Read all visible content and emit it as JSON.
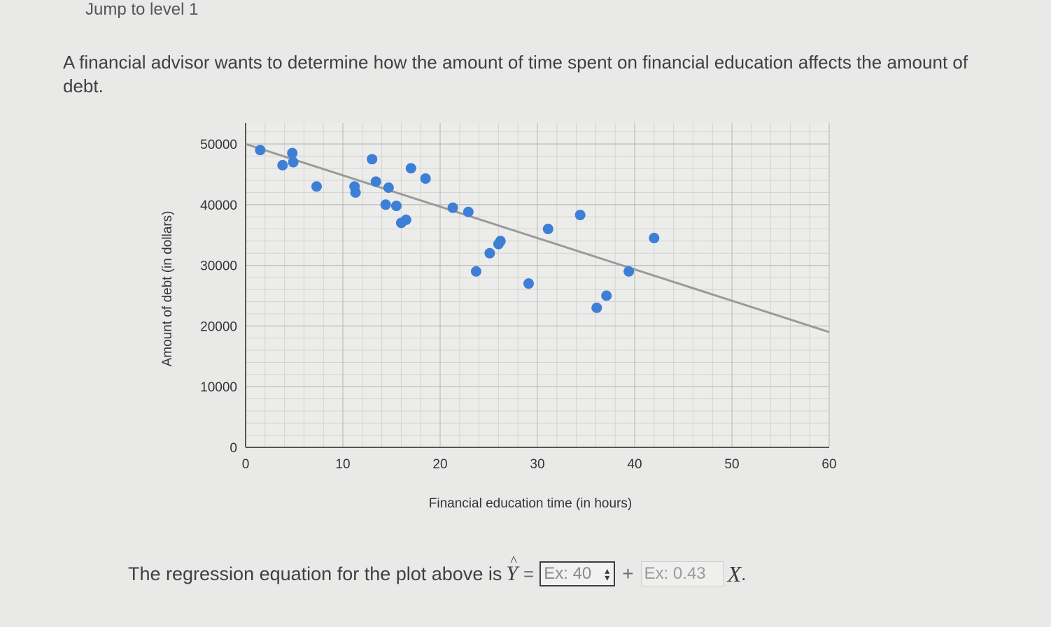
{
  "header": {
    "level_link": "Jump to level 1"
  },
  "problem": {
    "text": "A financial advisor wants to determine how the amount of time spent on financial education affects the amount of debt."
  },
  "chart_data": {
    "type": "scatter",
    "xlabel": "Financial education time (in hours)",
    "ylabel": "Amount of debt (in dollars)",
    "xlim": [
      0,
      60
    ],
    "ylim": [
      0,
      50000
    ],
    "x_ticks": [
      0,
      10,
      20,
      30,
      40,
      50,
      60
    ],
    "y_ticks": [
      0,
      10000,
      20000,
      30000,
      40000,
      50000
    ],
    "grid": true,
    "point_color": "#3d7fd6",
    "line_color": "#9a9a9a",
    "points": [
      {
        "x": 1.5,
        "y": 49000
      },
      {
        "x": 3.8,
        "y": 46500
      },
      {
        "x": 4.8,
        "y": 48500
      },
      {
        "x": 4.9,
        "y": 47000
      },
      {
        "x": 7.3,
        "y": 43000
      },
      {
        "x": 11.2,
        "y": 43000
      },
      {
        "x": 11.3,
        "y": 42000
      },
      {
        "x": 13.0,
        "y": 47500
      },
      {
        "x": 13.4,
        "y": 43800
      },
      {
        "x": 14.4,
        "y": 40000
      },
      {
        "x": 14.7,
        "y": 42800
      },
      {
        "x": 15.5,
        "y": 39800
      },
      {
        "x": 16.0,
        "y": 37000
      },
      {
        "x": 16.5,
        "y": 37500
      },
      {
        "x": 17.0,
        "y": 46000
      },
      {
        "x": 18.5,
        "y": 44300
      },
      {
        "x": 21.3,
        "y": 39500
      },
      {
        "x": 22.9,
        "y": 38800
      },
      {
        "x": 23.7,
        "y": 29000
      },
      {
        "x": 25.1,
        "y": 32000
      },
      {
        "x": 26.0,
        "y": 33500
      },
      {
        "x": 26.2,
        "y": 34000
      },
      {
        "x": 29.1,
        "y": 27000
      },
      {
        "x": 31.1,
        "y": 36000
      },
      {
        "x": 34.4,
        "y": 38300
      },
      {
        "x": 36.1,
        "y": 23000
      },
      {
        "x": 37.1,
        "y": 25000
      },
      {
        "x": 39.4,
        "y": 29000
      },
      {
        "x": 42.0,
        "y": 34500
      }
    ],
    "regression_line": {
      "x": [
        0,
        60
      ],
      "y": [
        50000,
        19000
      ]
    }
  },
  "equation": {
    "prefix": "The regression equation for the plot above is",
    "yhat": "Y",
    "hat": "^",
    "equals": "=",
    "intercept_placeholder": "Ex: 40",
    "plus": "+",
    "slope_placeholder": "Ex: 0.43",
    "x_var": "X",
    "period": "."
  }
}
